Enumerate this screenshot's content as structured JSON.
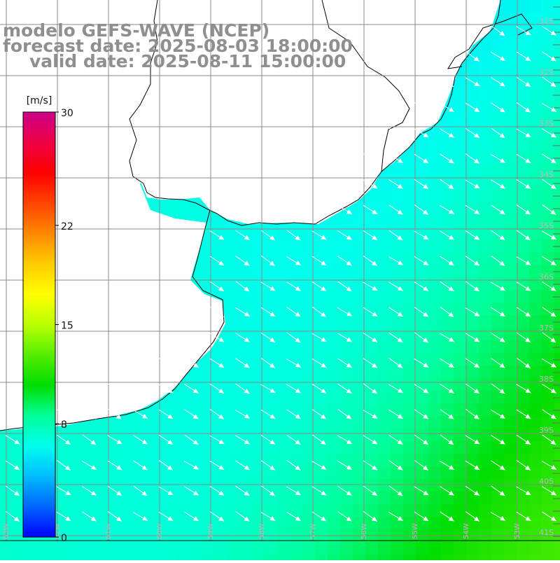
{
  "title": {
    "model": "modelo GEFS-WAVE (NCEP)",
    "forecast": "forecast date: 2025-08-03 18:00:00",
    "valid": "valid date: 2025-08-11 15:00:00"
  },
  "colorbar": {
    "unit": "[m/s]",
    "ticks": [
      {
        "value": 30,
        "label": "30"
      },
      {
        "value": 22,
        "label": "22"
      },
      {
        "value": 15,
        "label": "15"
      },
      {
        "value": 8,
        "label": "8"
      },
      {
        "value": 0,
        "label": "0"
      }
    ],
    "range": [
      0,
      30
    ],
    "colors": [
      "#0000ff",
      "#0066ff",
      "#00bbff",
      "#00ffee",
      "#00ff99",
      "#00dd00",
      "#55ee00",
      "#bbff00",
      "#ffff00",
      "#ffcc00",
      "#ff8800",
      "#ff4400",
      "#ff0000",
      "#ee0044",
      "#cc0088"
    ]
  },
  "map": {
    "land_color": "#ffffff",
    "grid_color": "#888888",
    "coast_color": "#000000",
    "arrow_color": "#ffffff",
    "right_axis_labels": [
      "31S",
      "32S",
      "33S",
      "34S",
      "35S",
      "36S",
      "37S",
      "38S",
      "39S",
      "40S",
      "41S"
    ],
    "bottom_axis_labels": [
      "63W",
      "62W",
      "61W",
      "60W",
      "59W",
      "58W",
      "57W",
      "56W",
      "55W",
      "54W",
      "53W"
    ]
  }
}
